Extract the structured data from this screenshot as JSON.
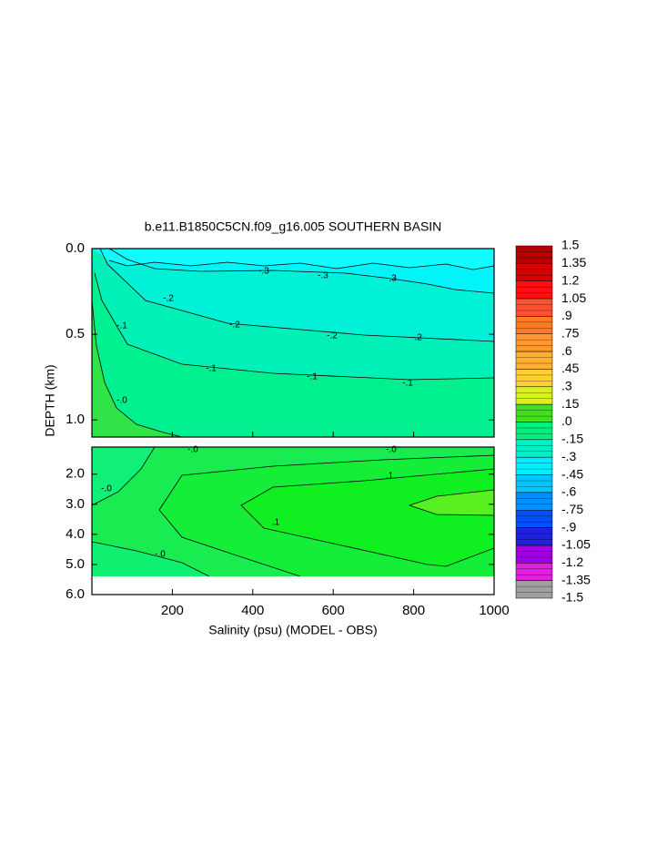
{
  "chart_data": {
    "type": "contour",
    "title": "b.e11.B1850C5CN.f09_g16.005 SOUTHERN BASIN",
    "x_label": "Salinity (psu) (MODEL - OBS)",
    "y_label": "DEPTH (km)",
    "xlim": [
      0,
      1000
    ],
    "xticks": [
      200,
      400,
      600,
      800,
      1000
    ],
    "panels": [
      {
        "ylim": [
          0,
          1.1
        ],
        "yticks": [
          {
            "value": 0,
            "label": "0.0"
          },
          {
            "value": 0.5,
            "label": "0.5"
          },
          {
            "value": 1,
            "label": "1.0"
          }
        ]
      },
      {
        "ylim": [
          1.1,
          6
        ],
        "yticks": [
          {
            "value": 2,
            "label": "2.0"
          },
          {
            "value": 3,
            "label": "3.0"
          },
          {
            "value": 4,
            "label": "4.0"
          },
          {
            "value": 5,
            "label": "5.0"
          },
          {
            "value": 6,
            "label": "6.0"
          }
        ]
      }
    ],
    "colorbar": {
      "levels": [
        1.5,
        1.35,
        1.2,
        1.05,
        {
          "value": 0.9,
          "label": ".9"
        },
        {
          "value": 0.75,
          "label": ".75"
        },
        {
          "value": 0.6,
          "label": ".6"
        },
        {
          "value": 0.45,
          "label": ".45"
        },
        {
          "value": 0.3,
          "label": ".3"
        },
        {
          "value": 0.15,
          "label": ".15"
        },
        {
          "value": 0,
          "label": ".0"
        },
        {
          "value": -0.15,
          "label": "-.15"
        },
        {
          "value": -0.3,
          "label": "-.3"
        },
        {
          "value": -0.45,
          "label": "-.45"
        },
        {
          "value": -0.6,
          "label": "-.6"
        },
        {
          "value": -0.75,
          "label": "-.75"
        },
        {
          "value": -0.9,
          "label": "-.9"
        },
        -1.05,
        -1.2,
        -1.35,
        -1.5
      ],
      "colors": [
        "#b80000",
        "#d80000",
        "#ff1010",
        "#ff5030",
        "#ff7a20",
        "#ff9630",
        "#ffb030",
        "#ffd030",
        "#d8f020",
        "#40e020",
        "#00f080",
        "#00f0c8",
        "#00f0ff",
        "#00c8ff",
        "#0090ff",
        "#0050ff",
        "#2020e0",
        "#a000e0",
        "#e020e0",
        "#a0a0a0"
      ]
    },
    "contour_labels": [
      "-.3",
      "-.3",
      "-.3",
      "-.2",
      "-.2",
      "-.2",
      "-.2",
      "-.1",
      "-.1",
      "-.1",
      "-.1",
      "-.0",
      "-.0",
      "-.0",
      "-.0",
      ".1",
      ".1",
      "-.0"
    ]
  }
}
